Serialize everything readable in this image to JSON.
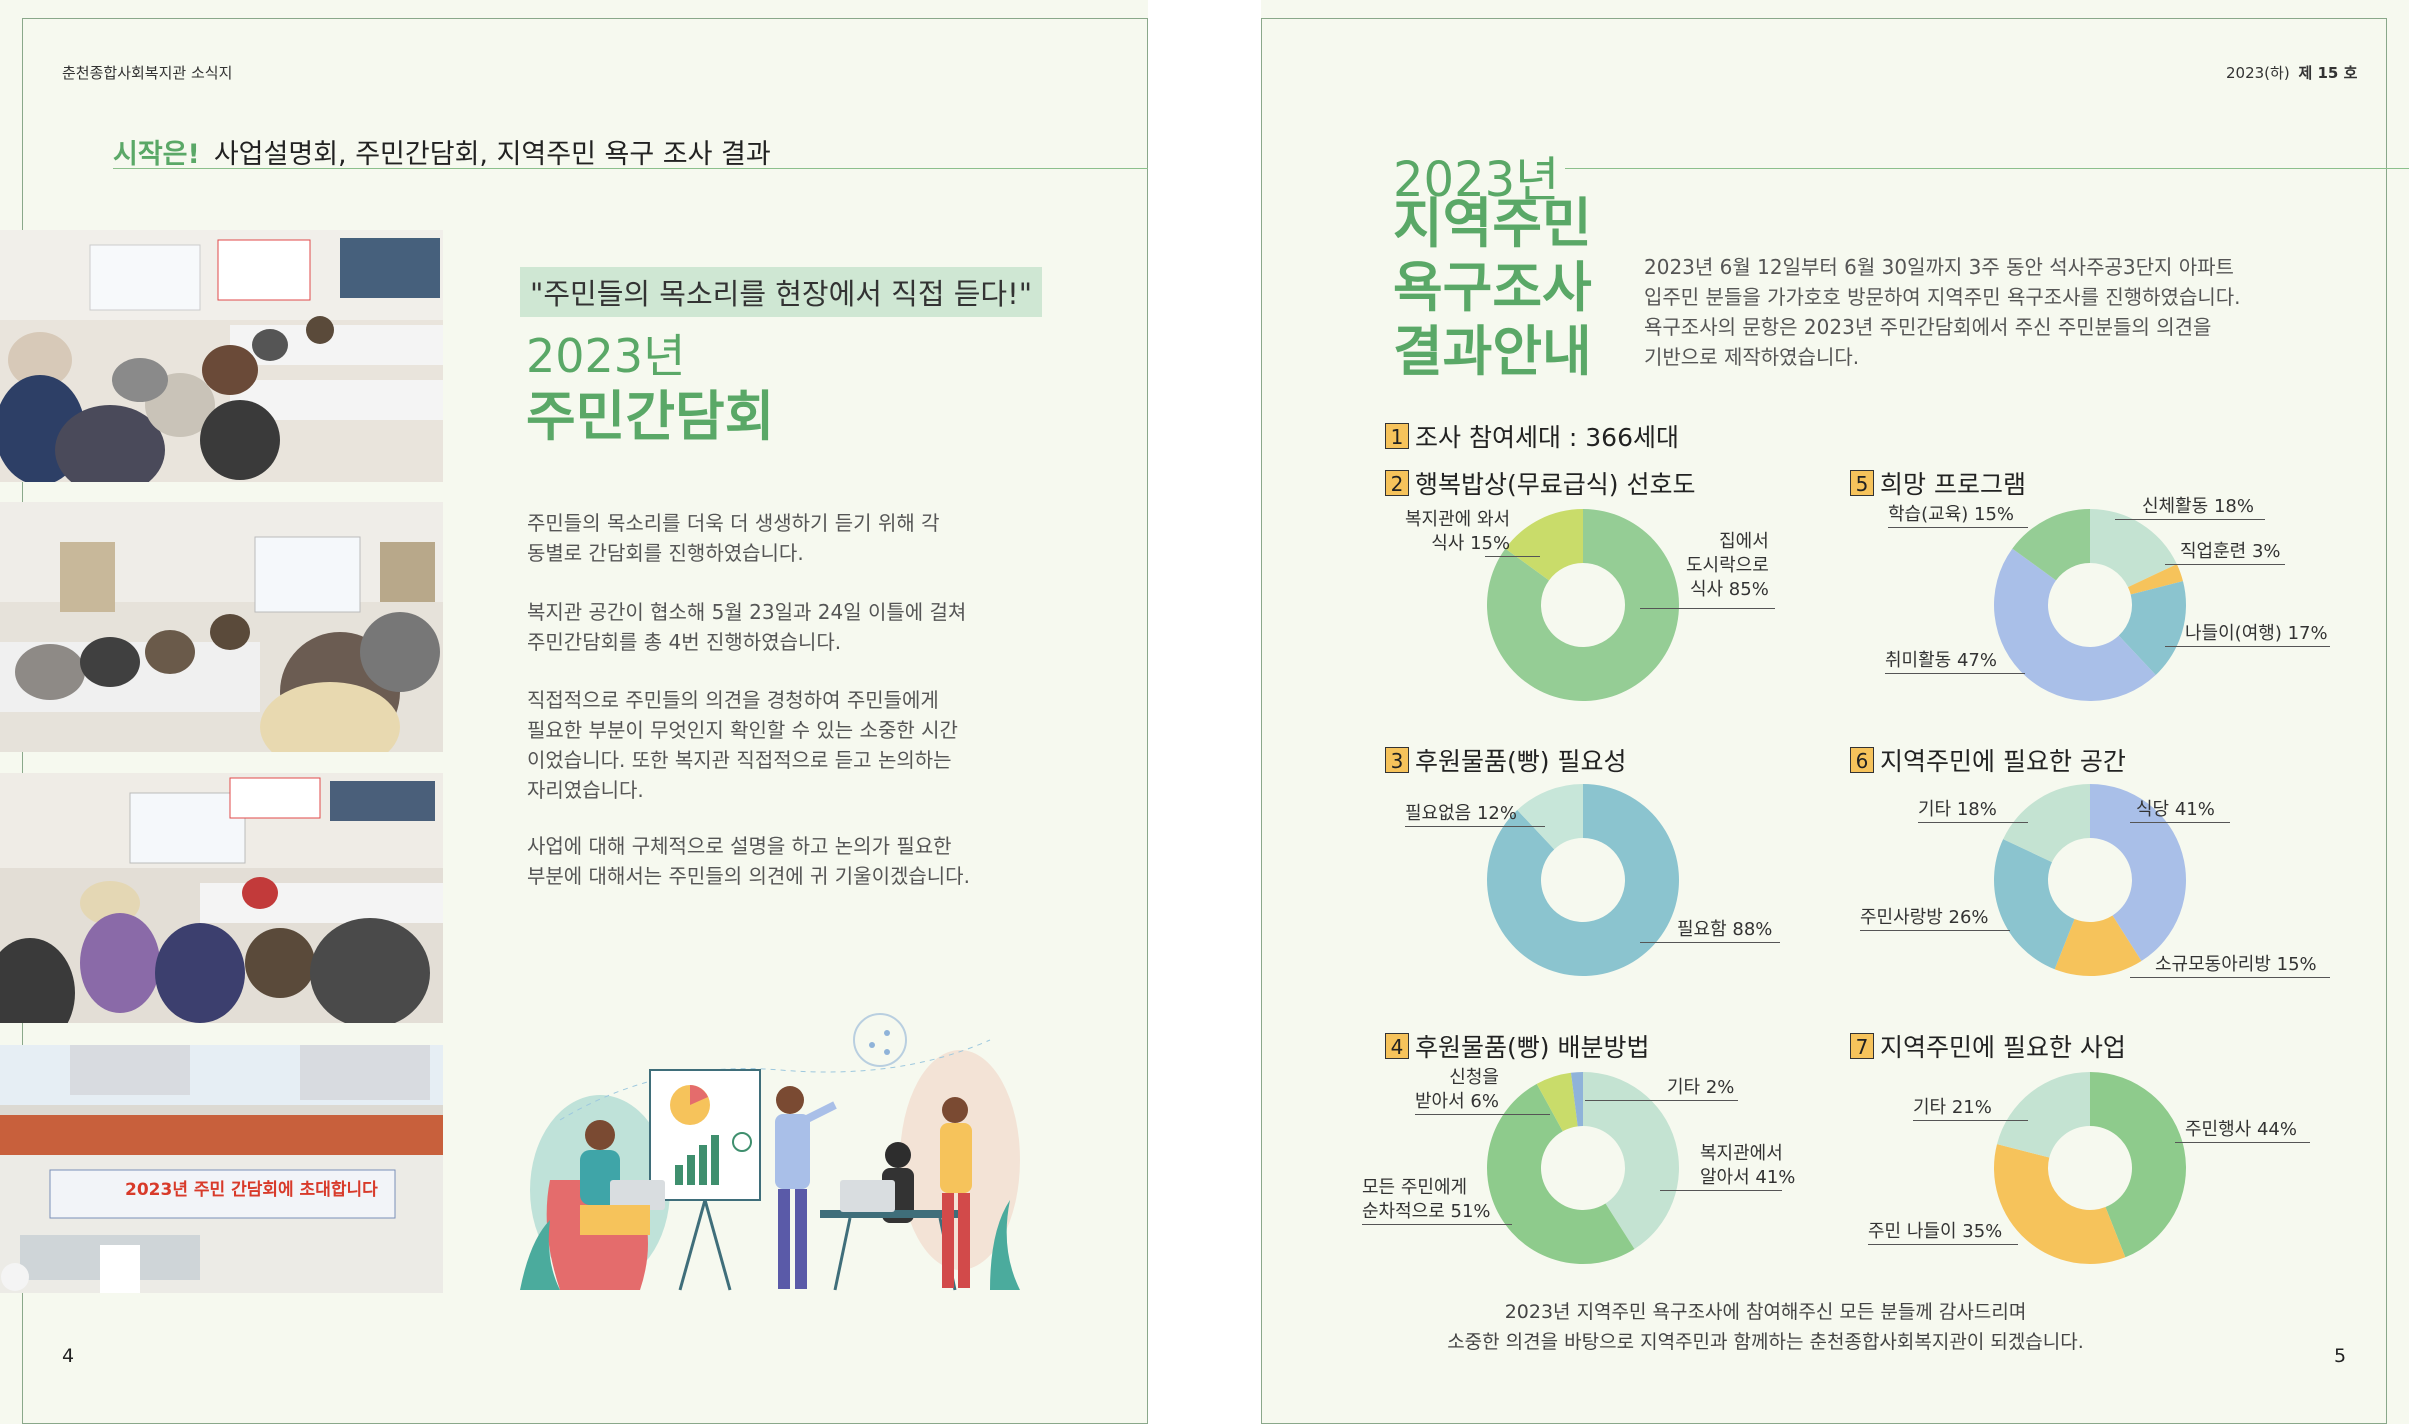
{
  "left_page": {
    "header": "춘천종합사회복지관 소식지",
    "headline_em": "시작은!",
    "headline_text": "사업설명회, 주민간담회, 지역주민 욕구 조사 결과",
    "quote": "\"주민들의 목소리를 현장에서 직접 듣다!\"",
    "year_title": "2023년",
    "main_title": "주민간담회",
    "paragraphs": [
      [
        "주민들의 목소리를 더욱 더 생생하기 듣기 위해 각",
        "동별로 간담회를 진행하였습니다."
      ],
      [
        "복지관 공간이 협소해 5월 23일과 24일 이틀에 걸쳐",
        "주민간담회를 총 4번 진행하였습니다."
      ],
      [
        "직접적으로 주민들의 의견을 경청하여 주민들에게",
        "필요한 부분이 무엇인지 확인할 수 있는 소중한 시간",
        "이었습니다. 또한 복지관 직접적으로 듣고 논의하는",
        "자리였습니다."
      ],
      [
        "사업에 대해 구체적으로 설명을 하고 논의가 필요한",
        "부분에 대해서는 주민들의 의견에 귀 기울이겠습니다."
      ]
    ],
    "banner_text": "2023년 주민 간담회에 초대합니다",
    "page_number": "4"
  },
  "right_page": {
    "issue": "2023(하)",
    "issue_no": "제 15 호",
    "year_title": "2023년",
    "title_lines": [
      "지역주민",
      "욕구조사",
      "결과안내"
    ],
    "intro": [
      "2023년 6월 12일부터 6월 30일까지 3주 동안 석사주공3단지 아파트",
      "입주민 분들을 가가호호 방문하여 지역주민 욕구조사를 진행하였습니다.",
      "욕구조사의 문항은 2023년 주민간담회에서 주신 주민분들의 의견을",
      "기반으로 제작하였습니다."
    ],
    "closing": [
      "2023년 지역주민 욕구조사에 참여해주신 모든 분들께 감사드리며",
      "소중한 의견을 바탕으로 지역주민과 함께하는 춘천종합사회복지관이 되겠습니다."
    ],
    "page_number": "5"
  },
  "sections": [
    {
      "num": "1",
      "title": "조사 참여세대 : 366세대"
    },
    {
      "num": "2",
      "title": "행복밥상(무료급식) 선호도"
    },
    {
      "num": "3",
      "title": "후원물품(빵) 필요성"
    },
    {
      "num": "4",
      "title": "후원물품(빵) 배분방법"
    },
    {
      "num": "5",
      "title": "희망 프로그램"
    },
    {
      "num": "6",
      "title": "지역주민에 필요한 공간"
    },
    {
      "num": "7",
      "title": "지역주민에 필요한 사업"
    }
  ],
  "chart_data": [
    {
      "type": "pie",
      "id": "c2",
      "slices": [
        {
          "label": "집에서 도시락으로 식사 85%",
          "value": 85,
          "color": "#95cd95"
        },
        {
          "label": "복지관에 와서 식사 15%",
          "value": 15,
          "color": "#c9dc6a"
        }
      ]
    },
    {
      "type": "pie",
      "id": "c3",
      "slices": [
        {
          "label": "필요함 88%",
          "value": 88,
          "color": "#8bc4cf"
        },
        {
          "label": "필요없음 12%",
          "value": 12,
          "color": "#c7e6d9"
        }
      ]
    },
    {
      "type": "pie",
      "id": "c4",
      "slices": [
        {
          "label": "복지관에서 알아서 41%",
          "value": 41,
          "color": "#c4e3d2"
        },
        {
          "label": "모든 주민에게 순차적으로 51%",
          "value": 51,
          "color": "#8ecb8c"
        },
        {
          "label": "신청을 받아서 6%",
          "value": 6,
          "color": "#c9dc6a"
        },
        {
          "label": "기타 2%",
          "value": 2,
          "color": "#8fb3d9"
        }
      ]
    },
    {
      "type": "pie",
      "id": "c5",
      "slices": [
        {
          "label": "신체활동 18%",
          "value": 18,
          "color": "#c4e3d2"
        },
        {
          "label": "직업훈련 3%",
          "value": 3,
          "color": "#f6c35b"
        },
        {
          "label": "나들이(여행) 17%",
          "value": 17,
          "color": "#8bc4cf"
        },
        {
          "label": "취미활동 47%",
          "value": 47,
          "color": "#a9bfe8"
        },
        {
          "label": "학습(교육) 15%",
          "value": 15,
          "color": "#95cd95"
        }
      ]
    },
    {
      "type": "pie",
      "id": "c6",
      "slices": [
        {
          "label": "식당 41%",
          "value": 41,
          "color": "#a9bfe8"
        },
        {
          "label": "소규모동아리방 15%",
          "value": 15,
          "color": "#f6c35b"
        },
        {
          "label": "주민사랑방 26%",
          "value": 26,
          "color": "#8bc4cf"
        },
        {
          "label": "기타 18%",
          "value": 18,
          "color": "#c4e3d2"
        }
      ]
    },
    {
      "type": "pie",
      "id": "c7",
      "slices": [
        {
          "label": "주민행사 44%",
          "value": 44,
          "color": "#8ecb8c"
        },
        {
          "label": "주민 나들이 35%",
          "value": 35,
          "color": "#f6c35b"
        },
        {
          "label": "기타 21%",
          "value": 21,
          "color": "#c4e3d2"
        }
      ]
    }
  ]
}
